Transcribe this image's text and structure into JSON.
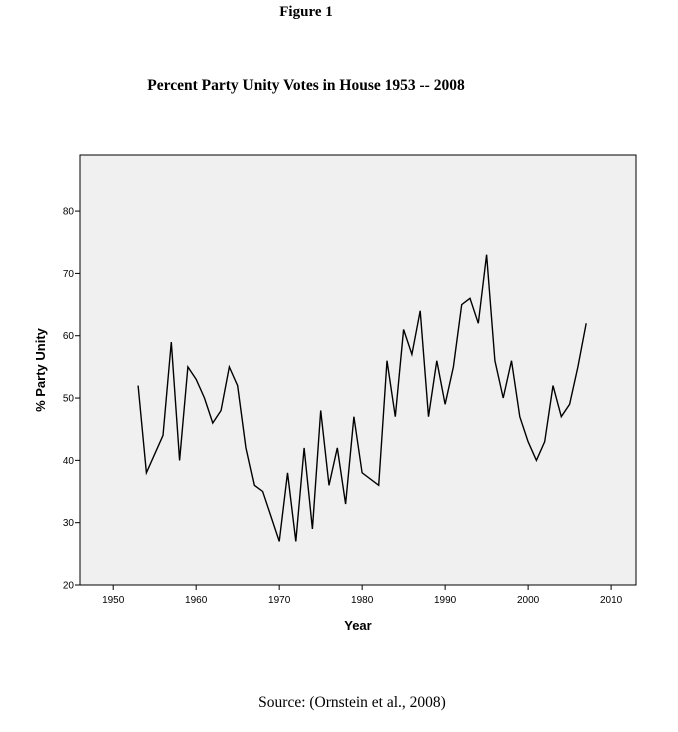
{
  "figure_label": "Figure 1",
  "source": "Source: (Ornstein et al., 2008)",
  "colors": {
    "plot_background": "#f0f0f0",
    "line": "#000000",
    "frame": "#000000"
  },
  "chart_data": {
    "type": "line",
    "title": "Percent Party Unity Votes in House 1953 -- 2008",
    "xlabel": "Year",
    "ylabel": "% Party Unity",
    "xlim": [
      1946,
      2013
    ],
    "ylim": [
      20,
      89
    ],
    "xticks": [
      1950,
      1960,
      1970,
      1980,
      1990,
      2000,
      2010
    ],
    "yticks": [
      20,
      30,
      40,
      50,
      60,
      70,
      80
    ],
    "grid": false,
    "legend": "none",
    "series": [
      {
        "x": [
          1953,
          1954,
          1956,
          1957,
          1958,
          1959,
          1960,
          1961,
          1962,
          1963,
          1964,
          1965,
          1966,
          1967,
          1968,
          1969,
          1970,
          1971,
          1972,
          1973,
          1974,
          1975,
          1976,
          1977,
          1978,
          1979,
          1980,
          1982,
          1983,
          1984,
          1985,
          1986,
          1987,
          1988,
          1989,
          1990,
          1991,
          1992,
          1993,
          1994,
          1995,
          1996,
          1997,
          1998,
          1999,
          2000,
          2001,
          2002,
          2003,
          2004,
          2005,
          2006,
          2007
        ],
        "y": [
          52,
          38,
          44,
          59,
          40,
          55,
          53,
          50,
          46,
          48,
          55,
          52,
          42,
          36,
          35,
          31,
          27,
          38,
          27,
          42,
          29,
          48,
          36,
          42,
          33,
          47,
          38,
          36,
          56,
          47,
          61,
          57,
          64,
          47,
          56,
          49,
          55,
          65,
          66,
          62,
          73,
          56,
          50,
          56,
          47,
          43,
          40,
          43,
          52,
          47,
          49,
          55,
          62
        ]
      }
    ]
  }
}
